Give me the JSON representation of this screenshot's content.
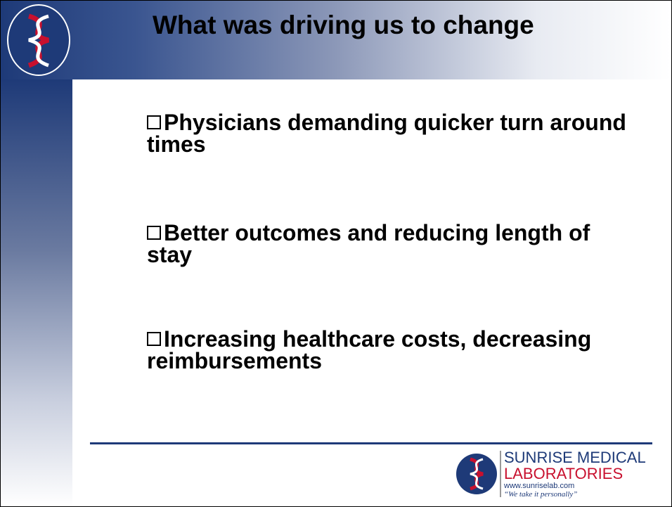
{
  "header": {
    "title": "What was driving us to change"
  },
  "bullets": [
    "Physicians demanding quicker turn around times",
    "Better outcomes and reducing length of stay",
    "Increasing healthcare costs, decreasing reimbursements"
  ],
  "footer": {
    "company_line1": "SUNRISE MEDICAL",
    "company_line2": "LABORATORIES",
    "website": "www.sunriselab.com",
    "tagline": "“We take it personally”"
  }
}
